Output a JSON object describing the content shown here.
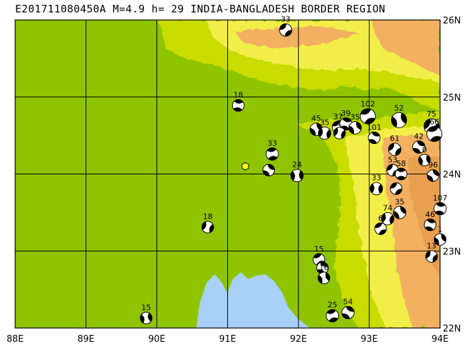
{
  "title": "E201711080450A M=4.9 h= 29 INDIA-BANGLADESH BORDER REGION",
  "lon_labels": [
    "88E",
    "89E",
    "90E",
    "91E",
    "92E",
    "93E",
    "94E"
  ],
  "lat_labels": [
    "26N",
    "25N",
    "24N",
    "23N",
    "22N"
  ],
  "map_extent": {
    "lon_min": 88,
    "lon_max": 94,
    "lat_min": 22,
    "lat_max": 26
  },
  "colors": {
    "lowland": "#8fc400",
    "hill": "#c8dc00",
    "upland": "#f2ee4a",
    "mountain": "#f2b060",
    "peak": "#e8a050",
    "water": "#a8d0f8",
    "grid": "#000000"
  },
  "event": {
    "lon": 91.25,
    "lat": 24.1,
    "marker": "hexagon-yellow"
  },
  "mechanisms": [
    {
      "label": "33",
      "lon": 91.82,
      "lat": 25.87,
      "label_side": "up"
    },
    {
      "label": "18",
      "lon": 91.15,
      "lat": 24.89,
      "label_side": "up"
    },
    {
      "label": "45",
      "lon": 92.25,
      "lat": 24.58,
      "label_side": "up"
    },
    {
      "label": "35",
      "lon": 92.37,
      "lat": 24.53,
      "label_side": "up"
    },
    {
      "label": "37",
      "lon": 92.56,
      "lat": 24.61,
      "label_side": "up"
    },
    {
      "label": "39",
      "lon": 92.67,
      "lat": 24.65,
      "label_side": "up"
    },
    {
      "label": "35",
      "lon": 92.8,
      "lat": 24.6,
      "label_side": "up"
    },
    {
      "label": "1",
      "lon": 92.58,
      "lat": 24.53,
      "label_side": "none"
    },
    {
      "label": "102",
      "lon": 92.98,
      "lat": 24.75,
      "label_side": "up"
    },
    {
      "label": "101",
      "lon": 93.07,
      "lat": 24.47,
      "label_side": "up"
    },
    {
      "label": "52",
      "lon": 93.42,
      "lat": 24.7,
      "label_side": "up"
    },
    {
      "label": "75",
      "lon": 93.88,
      "lat": 24.62,
      "label_side": "up"
    },
    {
      "label": "66",
      "lon": 93.92,
      "lat": 24.52,
      "label_side": "up"
    },
    {
      "label": "42",
      "lon": 93.7,
      "lat": 24.35,
      "label_side": "up"
    },
    {
      "label": "0",
      "lon": 93.78,
      "lat": 24.18,
      "label_side": "up"
    },
    {
      "label": "61",
      "lon": 93.36,
      "lat": 24.32,
      "label_side": "up"
    },
    {
      "label": "33",
      "lon": 91.63,
      "lat": 24.26,
      "label_side": "up"
    },
    {
      "label": "",
      "lon": 91.58,
      "lat": 24.05,
      "label_side": "none"
    },
    {
      "label": "24",
      "lon": 91.98,
      "lat": 23.98,
      "label_side": "up"
    },
    {
      "label": "53",
      "lon": 93.33,
      "lat": 24.05,
      "label_side": "up"
    },
    {
      "label": "58",
      "lon": 93.45,
      "lat": 24.0,
      "label_side": "up"
    },
    {
      "label": "96",
      "lon": 93.9,
      "lat": 23.98,
      "label_side": "up"
    },
    {
      "label": "33",
      "lon": 93.1,
      "lat": 23.81,
      "label_side": "up"
    },
    {
      "label": "",
      "lon": 93.38,
      "lat": 23.81,
      "label_side": "none"
    },
    {
      "label": "107",
      "lon": 94.0,
      "lat": 23.55,
      "label_side": "up"
    },
    {
      "label": "35",
      "lon": 93.43,
      "lat": 23.5,
      "label_side": "up"
    },
    {
      "label": "74",
      "lon": 93.26,
      "lat": 23.42,
      "label_side": "up"
    },
    {
      "label": "6",
      "lon": 93.16,
      "lat": 23.29,
      "label_side": "up"
    },
    {
      "label": "46",
      "lon": 93.86,
      "lat": 23.34,
      "label_side": "up"
    },
    {
      "label": "1",
      "lon": 94.0,
      "lat": 23.15,
      "label_side": "up"
    },
    {
      "label": "18",
      "lon": 90.72,
      "lat": 23.31,
      "label_side": "up"
    },
    {
      "label": "15",
      "lon": 92.29,
      "lat": 22.89,
      "label_side": "up"
    },
    {
      "label": "",
      "lon": 92.34,
      "lat": 22.78,
      "label_side": "none"
    },
    {
      "label": "16",
      "lon": 92.36,
      "lat": 22.65,
      "label_side": "up"
    },
    {
      "label": "13",
      "lon": 93.88,
      "lat": 22.93,
      "label_side": "up"
    },
    {
      "label": "25",
      "lon": 92.48,
      "lat": 22.16,
      "label_side": "up"
    },
    {
      "label": "54",
      "lon": 92.7,
      "lat": 22.2,
      "label_side": "up"
    },
    {
      "label": "15",
      "lon": 89.85,
      "lat": 22.13,
      "label_side": "up"
    }
  ]
}
